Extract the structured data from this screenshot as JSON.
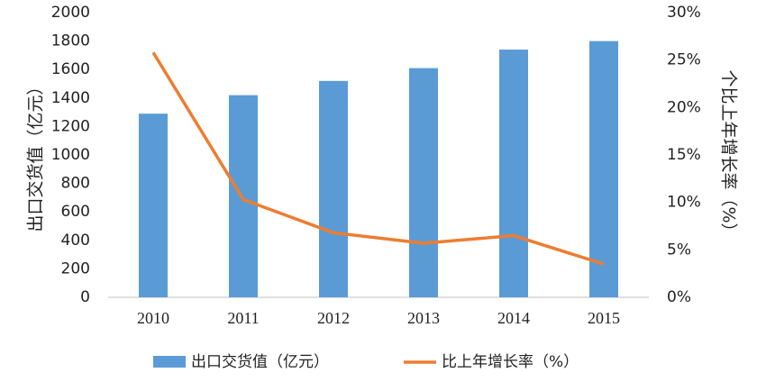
{
  "chart_data": {
    "type": "bar",
    "categories": [
      "2010",
      "2011",
      "2012",
      "2013",
      "2014",
      "2015"
    ],
    "series": [
      {
        "name": "出口交货值（亿元）",
        "type": "bar",
        "color": "#5b9bd5",
        "values": [
          1290,
          1420,
          1520,
          1610,
          1740,
          1800
        ]
      },
      {
        "name": "比上年增长率（%）",
        "type": "line",
        "axis": "y2",
        "color": "#ed7d31",
        "values": [
          25.8,
          10.3,
          6.8,
          5.7,
          6.5,
          3.5
        ]
      }
    ],
    "ylabel": "出口交货值（亿元）",
    "y2label": "个比上年增长率（%）",
    "ylim": [
      0,
      2000
    ],
    "yticks": [
      0,
      200,
      400,
      600,
      800,
      1000,
      1200,
      1400,
      1600,
      1800,
      2000
    ],
    "y2lim": [
      0,
      30
    ],
    "y2ticks": [
      {
        "value": 0,
        "label": "0%"
      },
      {
        "value": 5,
        "label": "5%"
      },
      {
        "value": 10,
        "label": "10%"
      },
      {
        "value": 15,
        "label": "15%"
      },
      {
        "value": 20,
        "label": "20%"
      },
      {
        "value": 25,
        "label": "25%"
      },
      {
        "value": 30,
        "label": "30%"
      }
    ],
    "grid": false,
    "legend": "bottom"
  }
}
